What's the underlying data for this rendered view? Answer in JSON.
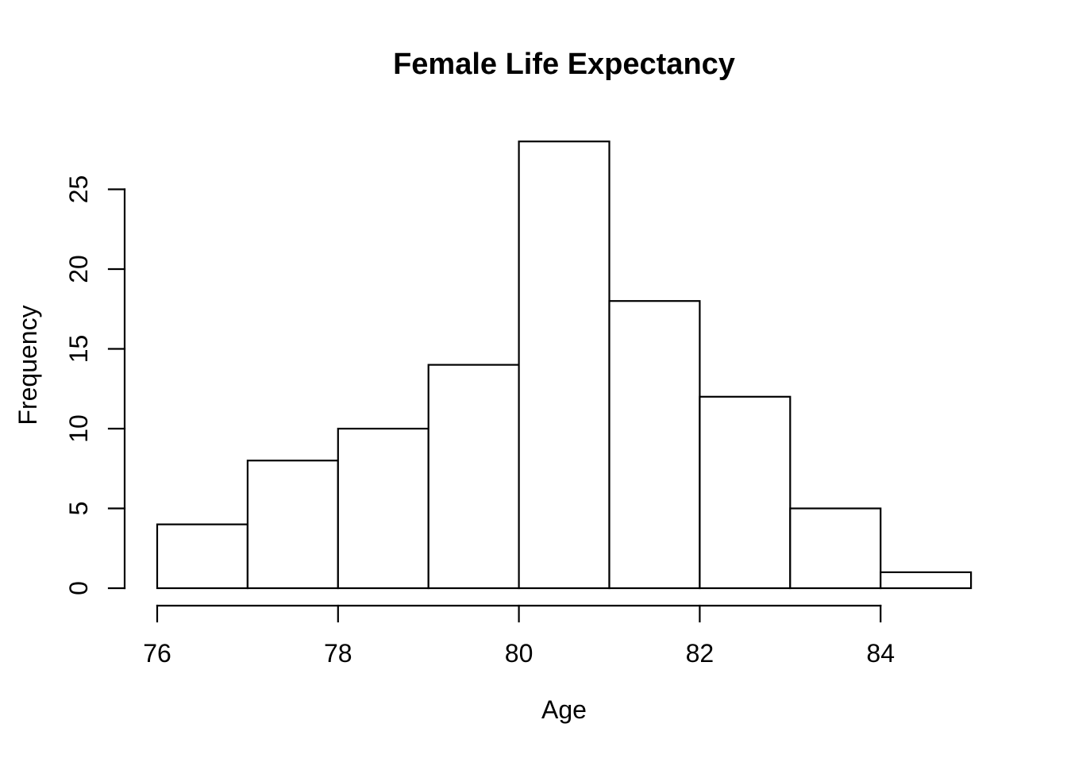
{
  "figure": {
    "kind": "r-base-histogram"
  },
  "chart_data": {
    "type": "bar",
    "chart_kind": "histogram",
    "title": "Female Life Expectancy",
    "xlabel": "Age",
    "ylabel": "Frequency",
    "bin_edges": [
      76,
      77,
      78,
      79,
      80,
      81,
      82,
      83,
      84,
      85
    ],
    "categories": [
      "76-77",
      "77-78",
      "78-79",
      "79-80",
      "80-81",
      "81-82",
      "82-83",
      "83-84",
      "84-85"
    ],
    "values": [
      4,
      8,
      10,
      14,
      28,
      18,
      12,
      5,
      1
    ],
    "x_ticks": [
      76,
      78,
      80,
      82,
      84
    ],
    "y_ticks": [
      0,
      5,
      10,
      15,
      20,
      25
    ],
    "xlim": [
      76,
      85
    ],
    "ylim": [
      0,
      28
    ],
    "grid": false,
    "legend": false,
    "bar_fill": "#ffffff",
    "bar_stroke": "#000000",
    "axis_color": "#000000",
    "text_color": "#000000",
    "background": "#ffffff"
  }
}
